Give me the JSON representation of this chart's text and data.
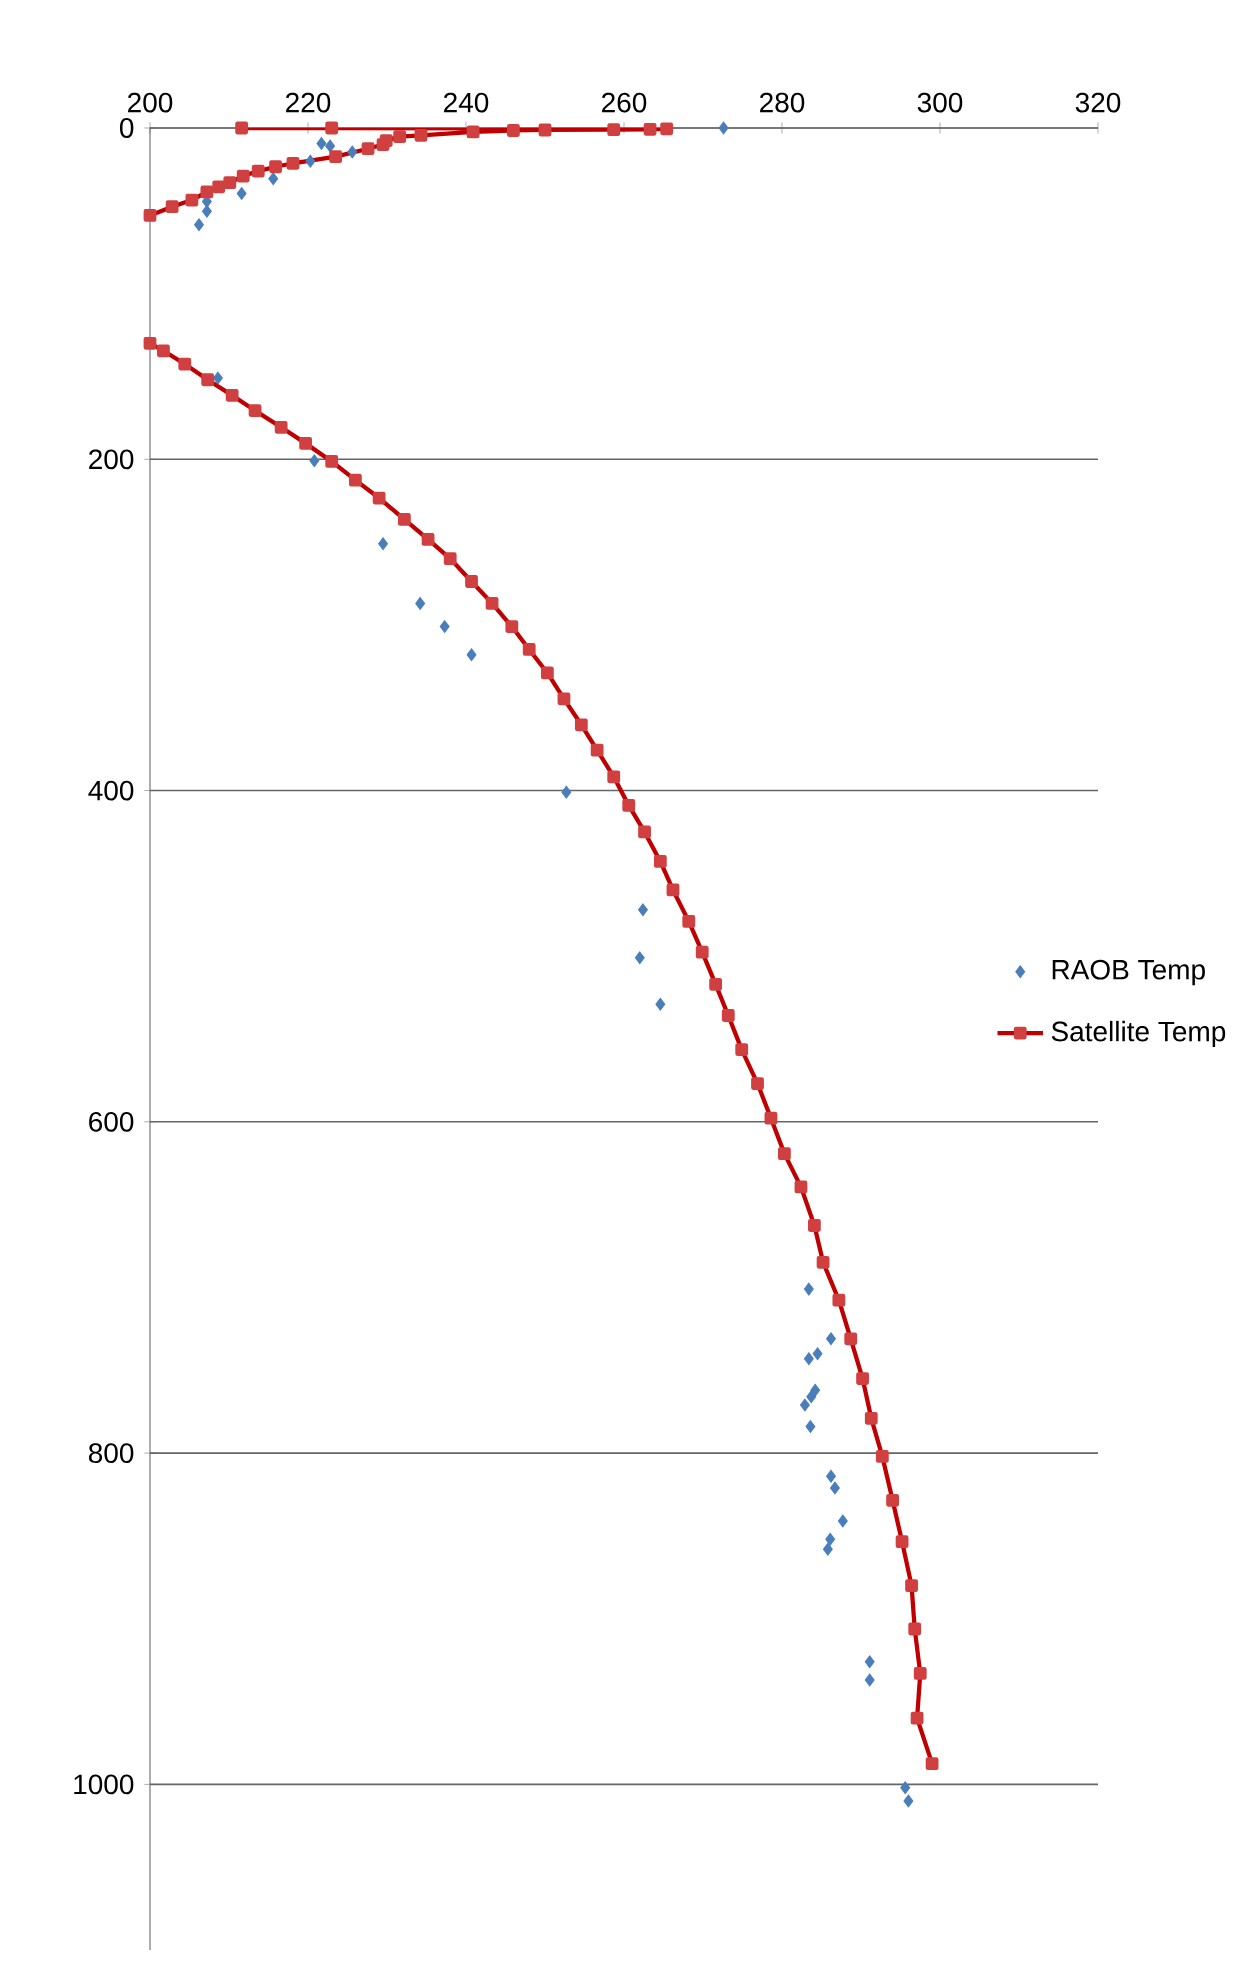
{
  "chart_data": {
    "type": "scatter",
    "xlim": [
      200,
      320
    ],
    "xticks": [
      200,
      220,
      240,
      260,
      280,
      300,
      320
    ],
    "ylim": [
      1100,
      0
    ],
    "yticks": [
      0,
      200,
      400,
      600,
      800,
      1000
    ],
    "grid": "y",
    "legend": "right",
    "series": [
      {
        "name": "RAOB Temp",
        "marker": "diamond",
        "color": "#4a7ebb",
        "x": [
          272.6,
          221.7,
          222.8,
          225.6,
          220.3,
          215.6,
          211.6,
          207.2,
          207.2,
          206.2,
          208.6,
          220.8,
          229.5,
          234.2,
          237.3,
          240.7,
          252.7,
          262.4,
          262.0,
          264.6,
          283.4,
          286.2,
          284.5,
          283.4,
          284.2,
          283.7,
          282.9,
          283.6,
          286.2,
          286.7,
          287.7,
          286.1,
          285.8,
          291.1,
          291.1,
          295.6,
          296.0
        ],
        "values": [
          0,
          9.3,
          10.9,
          14.5,
          20,
          30.6,
          39.5,
          44.3,
          50.3,
          58.4,
          151,
          200.9,
          251,
          287,
          301,
          318,
          401,
          472,
          501,
          529,
          701,
          731,
          740,
          743,
          762,
          766,
          771,
          784,
          814,
          821,
          841,
          852,
          858,
          926,
          937,
          1002,
          1010
        ]
      },
      {
        "name": "Satellite Temp",
        "type": "line",
        "marker": "square",
        "color": "#c00000",
        "x": [
          211.6,
          223.0,
          265.4,
          263.3,
          258.7,
          250.0,
          246.0,
          240.9,
          234.3,
          231.6,
          229.9,
          229.5,
          227.6,
          223.5,
          218.1,
          215.9,
          213.7,
          211.8,
          210.1,
          208.7,
          207.2,
          205.3,
          202.8,
          200.0,
          null,
          200.0,
          201.7,
          204.4,
          207.3,
          210.4,
          213.3,
          216.6,
          219.7,
          223.0,
          226.0,
          229.0,
          232.2,
          235.2,
          238.0,
          240.7,
          243.3,
          245.8,
          248.0,
          250.3,
          252.4,
          254.6,
          256.6,
          258.7,
          260.6,
          262.6,
          264.6,
          266.2,
          268.2,
          269.9,
          271.6,
          273.2,
          274.9,
          276.9,
          278.6,
          280.3,
          282.4,
          284.1,
          285.2,
          287.2,
          288.7,
          290.2,
          291.3,
          292.7,
          294.0,
          295.2,
          296.4,
          296.8,
          297.5,
          297.1,
          299.0
        ],
        "values": [
          0,
          0,
          0.5,
          0.8,
          1,
          1.2,
          1.5,
          2.4,
          4.4,
          5.2,
          7.6,
          10,
          12.5,
          17.3,
          21.3,
          23.4,
          26,
          29,
          33,
          35.5,
          38.6,
          43.5,
          47.5,
          52.8,
          null,
          130,
          134.5,
          142.5,
          152,
          161.4,
          170.6,
          180.7,
          190.4,
          201.3,
          212.6,
          223.4,
          236.3,
          248.4,
          260,
          273.8,
          287,
          301,
          314.8,
          329,
          344.6,
          360.3,
          375.6,
          391.7,
          409,
          425,
          442.8,
          460,
          479,
          497.6,
          517,
          535.8,
          556.4,
          576.9,
          597.8,
          619.2,
          639.3,
          662.6,
          684.8,
          707.7,
          731,
          755,
          779,
          802,
          828.5,
          853.5,
          880,
          906.2,
          933,
          960,
          987.5
        ]
      }
    ]
  }
}
